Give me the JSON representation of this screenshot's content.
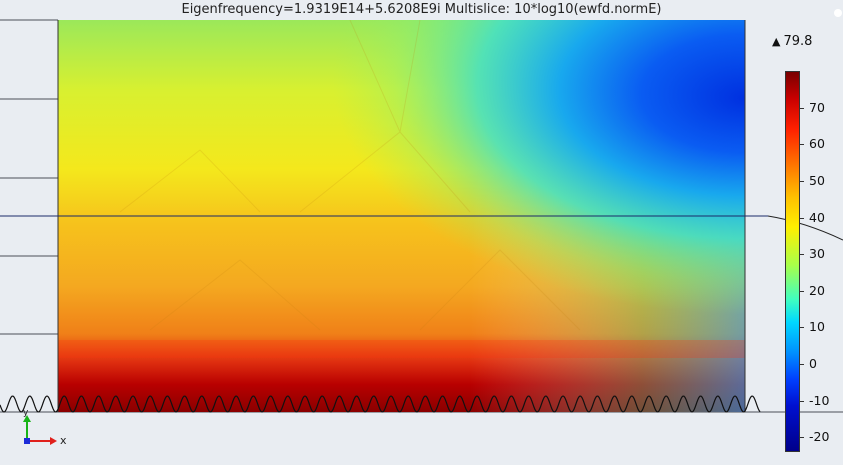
{
  "plot": {
    "title": "Eigenfrequency=1.9319E14+5.6208E9i    Multislice: 10*log10(ewfd.normE)"
  },
  "colorbar": {
    "max_label": "79.8",
    "max_marker": "triangle-up",
    "range": [
      -24,
      80
    ],
    "ticks": [
      "70",
      "60",
      "50",
      "40",
      "30",
      "20",
      "10",
      "0",
      "-10",
      "-20"
    ],
    "tick_values": [
      70,
      60,
      50,
      40,
      30,
      20,
      10,
      0,
      -10,
      -20
    ],
    "colormap": "Rainbow"
  },
  "axes": {
    "x_label": "x",
    "y_label": "y"
  },
  "colors": {
    "background": "#e9edf2",
    "x_axis": "#e0201c",
    "y_axis": "#18b418",
    "origin": "#1c2cd8"
  }
}
